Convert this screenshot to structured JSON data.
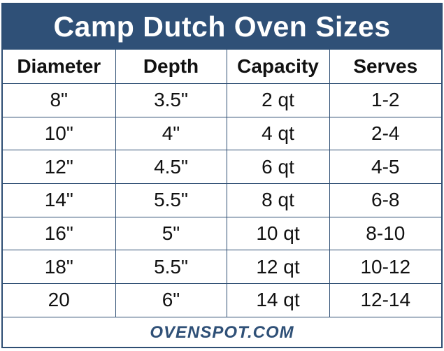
{
  "title": "Camp Dutch Oven Sizes",
  "table": {
    "headers": [
      "Diameter",
      "Depth",
      "Capacity",
      "Serves"
    ],
    "rows": [
      [
        "8\"",
        "3.5\"",
        "2 qt",
        "1-2"
      ],
      [
        "10\"",
        "4\"",
        "4 qt",
        "2-4"
      ],
      [
        "12\"",
        "4.5\"",
        "6 qt",
        "4-5"
      ],
      [
        "14\"",
        "5.5\"",
        "8 qt",
        "6-8"
      ],
      [
        "16\"",
        "5\"",
        "10 qt",
        "8-10"
      ],
      [
        "18\"",
        "5.5\"",
        "12 qt",
        "10-12"
      ],
      [
        "20",
        "6\"",
        "14 qt",
        "12-14"
      ]
    ]
  },
  "footer": {
    "brand": "OVENSPOT.COM"
  },
  "colors": {
    "accent": "#2f5077",
    "border": "#2e4e73",
    "text": "#111111"
  }
}
